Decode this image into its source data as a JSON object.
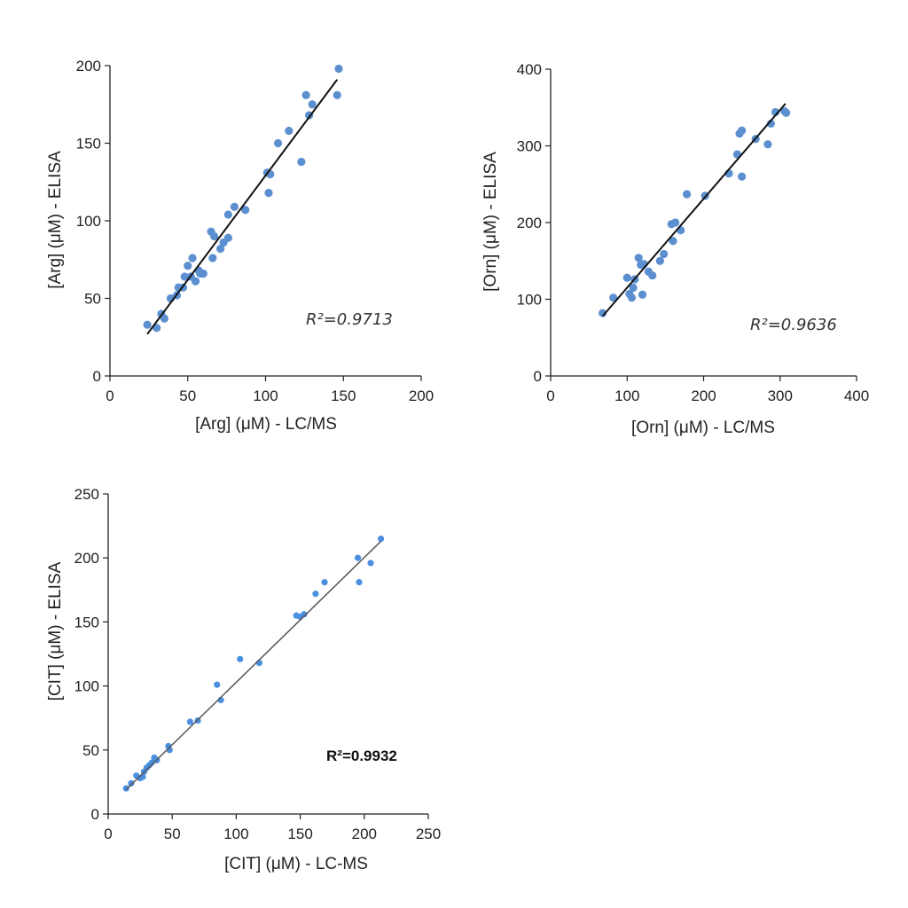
{
  "chart_data": [
    {
      "type": "scatter",
      "xlabel": "[Arg] (μM) - LC/MS",
      "ylabel": "[Arg] (μM) - ELISA",
      "xlim": [
        0,
        200
      ],
      "ylim": [
        0,
        200
      ],
      "xticks": [
        "0",
        "50",
        "100",
        "150",
        "200"
      ],
      "yticks": [
        "0",
        "50",
        "100",
        "150",
        "200"
      ],
      "annotation": "R²=0.9713",
      "color": "#5b8fd0",
      "fit": {
        "x": [
          24,
          146
        ],
        "y": [
          27,
          191
        ]
      },
      "x": [
        24,
        30,
        33,
        35,
        39,
        43,
        44,
        47,
        48,
        50,
        52,
        53,
        55,
        57,
        58,
        60,
        65,
        66,
        67,
        71,
        73,
        76,
        76,
        80,
        87,
        101,
        102,
        103,
        108,
        115,
        123,
        126,
        128,
        130,
        146,
        147
      ],
      "y": [
        33,
        31,
        40,
        37,
        50,
        52,
        57,
        57,
        64,
        71,
        64,
        76,
        61,
        68,
        66,
        66,
        93,
        76,
        90,
        82,
        86,
        104,
        89,
        109,
        107,
        131,
        118,
        130,
        150,
        158,
        138,
        181,
        168,
        175,
        181,
        198
      ]
    },
    {
      "type": "scatter",
      "xlabel": "[Orn] (μM) - LC/MS",
      "ylabel": "[Orn] (μM) - ELISA",
      "xlim": [
        0,
        400
      ],
      "ylim": [
        0,
        400
      ],
      "xticks": [
        "0",
        "100",
        "200",
        "300",
        "400"
      ],
      "yticks": [
        "0",
        "100",
        "200",
        "300",
        "400"
      ],
      "annotation": "R²=0.9636",
      "color": "#5b8fd0",
      "fit": {
        "x": [
          68,
          307
        ],
        "y": [
          78,
          355
        ]
      },
      "x": [
        68,
        82,
        100,
        103,
        106,
        108,
        110,
        115,
        118,
        120,
        122,
        128,
        133,
        143,
        148,
        158,
        160,
        163,
        170,
        178,
        202,
        233,
        244,
        247,
        250,
        250,
        268,
        284,
        288,
        294,
        306,
        308
      ],
      "y": [
        82,
        102,
        128,
        107,
        102,
        115,
        126,
        154,
        145,
        106,
        146,
        136,
        131,
        150,
        159,
        198,
        176,
        200,
        190,
        237,
        235,
        264,
        289,
        316,
        320,
        260,
        309,
        302,
        329,
        344,
        345,
        343
      ]
    },
    {
      "type": "scatter",
      "xlabel": "[CIT] (μM) - LC-MS",
      "ylabel": "[CIT] (μM) - ELISA",
      "xlim": [
        0,
        250
      ],
      "ylim": [
        0,
        250
      ],
      "xticks": [
        "0",
        "50",
        "100",
        "150",
        "200",
        "250"
      ],
      "yticks": [
        "0",
        "50",
        "100",
        "150",
        "200",
        "250"
      ],
      "annotation": "R²=0.9932",
      "color": "#4a8fe0",
      "fit": {
        "x": [
          14,
          213
        ],
        "y": [
          19,
          213
        ]
      },
      "x": [
        14,
        18,
        22,
        25,
        27,
        28,
        30,
        32,
        34,
        36,
        38,
        47,
        48,
        64,
        70,
        85,
        88,
        103,
        118,
        147,
        150,
        153,
        162,
        169,
        195,
        196,
        205,
        213
      ],
      "y": [
        20,
        24,
        30,
        28,
        29,
        33,
        36,
        38,
        40,
        44,
        42,
        53,
        50,
        72,
        73,
        101,
        89,
        121,
        118,
        155,
        154,
        156,
        172,
        181,
        200,
        181,
        196,
        215
      ]
    }
  ]
}
